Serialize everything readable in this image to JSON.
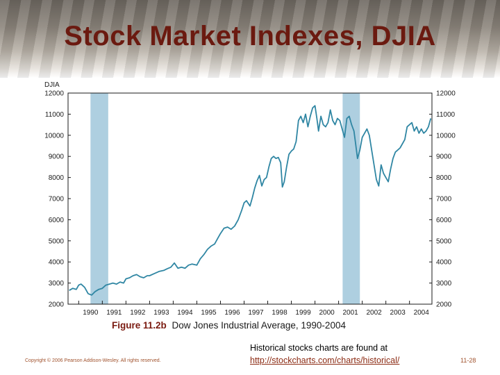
{
  "slide": {
    "title": "Stock Market Indexes, DJIA",
    "copyright": "Copyright © 2006 Pearson Addison-Wesley. All rights reserved.",
    "page_number": "11-28",
    "note_line1": "Historical stocks charts are found at",
    "note_link": "http://stockcharts.com/charts/historical/"
  },
  "figure": {
    "label": "Figure 11.2b",
    "text": "Dow Jones Industrial Average, 1990-2004"
  },
  "colors": {
    "line": "#2f86a3",
    "shade": "#aecfe0",
    "title": "#6b1a10"
  },
  "chart_data": {
    "type": "line",
    "ylabel": "DJIA",
    "ylim": [
      2000,
      12000
    ],
    "xlim": [
      1989.55,
      2004.95
    ],
    "y_ticks": [
      "2000",
      "3000",
      "4000",
      "5000",
      "6000",
      "7000",
      "8000",
      "9000",
      "10000",
      "11000",
      "12000"
    ],
    "x_ticks": [
      "1990",
      "1991",
      "1992",
      "1993",
      "1994",
      "1995",
      "1996",
      "1997",
      "1998",
      "1999",
      "2000",
      "2001",
      "2002",
      "2003",
      "2004"
    ],
    "recessions": [
      [
        1990.5,
        1991.25
      ],
      [
        2001.17,
        2001.9
      ]
    ],
    "series": [
      {
        "name": "DJIA",
        "x": [
          1989.6,
          1989.75,
          1989.9,
          1990.0,
          1990.1,
          1990.25,
          1990.4,
          1990.55,
          1990.7,
          1990.85,
          1991.0,
          1991.15,
          1991.3,
          1991.45,
          1991.6,
          1991.75,
          1991.9,
          1992.0,
          1992.15,
          1992.3,
          1992.45,
          1992.6,
          1992.75,
          1992.9,
          1993.0,
          1993.2,
          1993.4,
          1993.6,
          1993.75,
          1993.9,
          1994.05,
          1994.2,
          1994.35,
          1994.5,
          1994.65,
          1994.8,
          1995.0,
          1995.15,
          1995.3,
          1995.45,
          1995.6,
          1995.75,
          1995.9,
          1996.0,
          1996.15,
          1996.3,
          1996.45,
          1996.6,
          1996.75,
          1996.9,
          1997.0,
          1997.1,
          1997.25,
          1997.35,
          1997.45,
          1997.55,
          1997.65,
          1997.75,
          1997.85,
          1997.95,
          1998.05,
          1998.15,
          1998.25,
          1998.35,
          1998.45,
          1998.55,
          1998.62,
          1998.7,
          1998.8,
          1998.9,
          1999.0,
          1999.1,
          1999.2,
          1999.3,
          1999.4,
          1999.5,
          1999.6,
          1999.7,
          1999.8,
          1999.9,
          2000.0,
          2000.08,
          2000.15,
          2000.25,
          2000.35,
          2000.45,
          2000.55,
          2000.65,
          2000.75,
          2000.85,
          2000.95,
          2001.05,
          2001.15,
          2001.25,
          2001.35,
          2001.45,
          2001.55,
          2001.65,
          2001.72,
          2001.8,
          2001.9,
          2002.0,
          2002.1,
          2002.2,
          2002.3,
          2002.4,
          2002.5,
          2002.6,
          2002.7,
          2002.8,
          2002.9,
          2003.0,
          2003.1,
          2003.2,
          2003.3,
          2003.4,
          2003.5,
          2003.6,
          2003.7,
          2003.8,
          2003.9,
          2004.0,
          2004.1,
          2004.2,
          2004.3,
          2004.4,
          2004.5,
          2004.6,
          2004.7,
          2004.8,
          2004.9
        ],
        "values": [
          2650,
          2750,
          2700,
          2900,
          2950,
          2800,
          2500,
          2430,
          2600,
          2700,
          2750,
          2900,
          2950,
          3000,
          2950,
          3050,
          3000,
          3200,
          3250,
          3350,
          3400,
          3300,
          3250,
          3350,
          3350,
          3450,
          3550,
          3600,
          3680,
          3750,
          3950,
          3700,
          3750,
          3700,
          3850,
          3900,
          3850,
          4150,
          4350,
          4600,
          4750,
          4850,
          5150,
          5350,
          5600,
          5650,
          5550,
          5700,
          6000,
          6450,
          6800,
          6900,
          6650,
          7050,
          7500,
          7850,
          8100,
          7600,
          7900,
          8000,
          8500,
          8900,
          9000,
          8900,
          8950,
          8700,
          7550,
          7800,
          8500,
          9100,
          9250,
          9350,
          9700,
          10700,
          10900,
          10600,
          11000,
          10400,
          10900,
          11300,
          11400,
          10800,
          10200,
          10900,
          10500,
          10400,
          10600,
          11200,
          10700,
          10500,
          10800,
          10700,
          10300,
          9900,
          10800,
          10900,
          10500,
          10200,
          9600,
          8900,
          9300,
          9900,
          10100,
          10300,
          10000,
          9300,
          8600,
          7900,
          7600,
          8600,
          8200,
          8000,
          7800,
          8400,
          8900,
          9200,
          9300,
          9400,
          9600,
          9800,
          10400,
          10500,
          10600,
          10200,
          10400,
          10100,
          10300,
          10100,
          10200,
          10400,
          10800
        ]
      }
    ]
  }
}
